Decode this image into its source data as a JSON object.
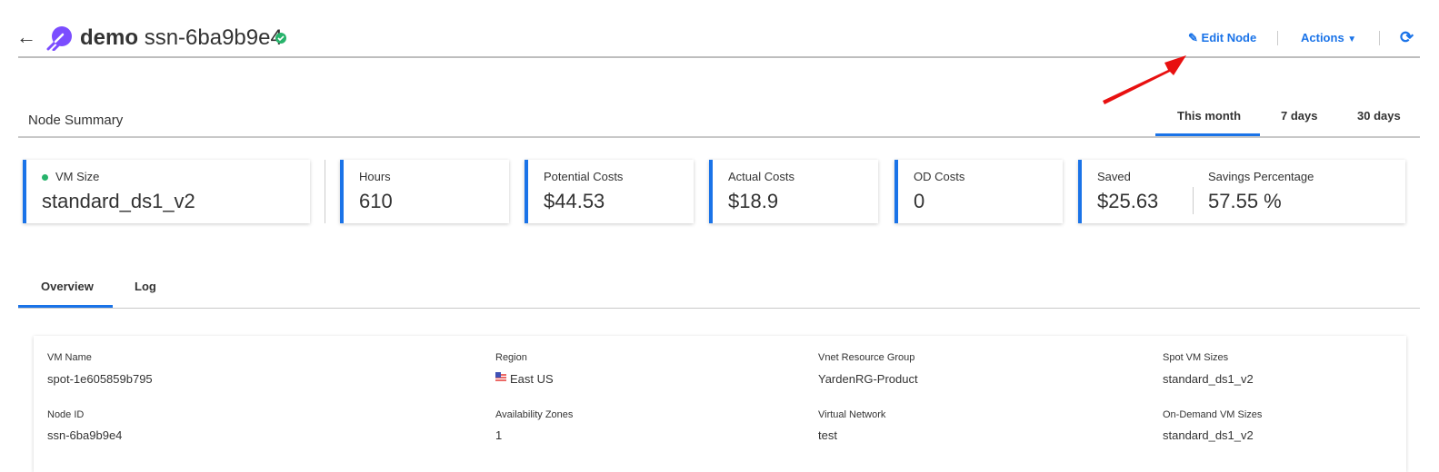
{
  "header": {
    "app_name": "demo",
    "node_name": "ssn-6ba9b9e4",
    "status": "healthy",
    "edit_label": "Edit Node",
    "actions_label": "Actions"
  },
  "summary": {
    "title": "Node Summary",
    "ranges": [
      "This month",
      "7 days",
      "30 days"
    ],
    "active_range": "This month"
  },
  "cards": {
    "vm_size": {
      "label": "VM Size",
      "value": "standard_ds1_v2"
    },
    "hours": {
      "label": "Hours",
      "value": "610"
    },
    "potential": {
      "label": "Potential Costs",
      "value": "$44.53"
    },
    "actual": {
      "label": "Actual Costs",
      "value": "$18.9"
    },
    "od": {
      "label": "OD Costs",
      "value": "0"
    },
    "saved": {
      "label": "Saved",
      "value": "$25.63"
    },
    "savings_pct": {
      "label": "Savings Percentage",
      "value": "57.55 %"
    }
  },
  "tabs": [
    "Overview",
    "Log"
  ],
  "details": {
    "vm_name": {
      "label": "VM Name",
      "value": "spot-1e605859b795"
    },
    "region": {
      "label": "Region",
      "value": "East US"
    },
    "vnet_rg": {
      "label": "Vnet Resource Group",
      "value": "YardenRG-Product"
    },
    "spot_sizes": {
      "label": "Spot VM Sizes",
      "value": "standard_ds1_v2"
    },
    "node_id": {
      "label": "Node ID",
      "value": "ssn-6ba9b9e4"
    },
    "zones": {
      "label": "Availability Zones",
      "value": "1"
    },
    "vnet": {
      "label": "Virtual Network",
      "value": "test"
    },
    "od_sizes": {
      "label": "On-Demand VM Sizes",
      "value": "standard_ds1_v2"
    }
  },
  "colors": {
    "accent": "#1a73e8",
    "status": "#27b36b",
    "logo": "#7b4dff",
    "annotation_arrow": "#e81010"
  }
}
